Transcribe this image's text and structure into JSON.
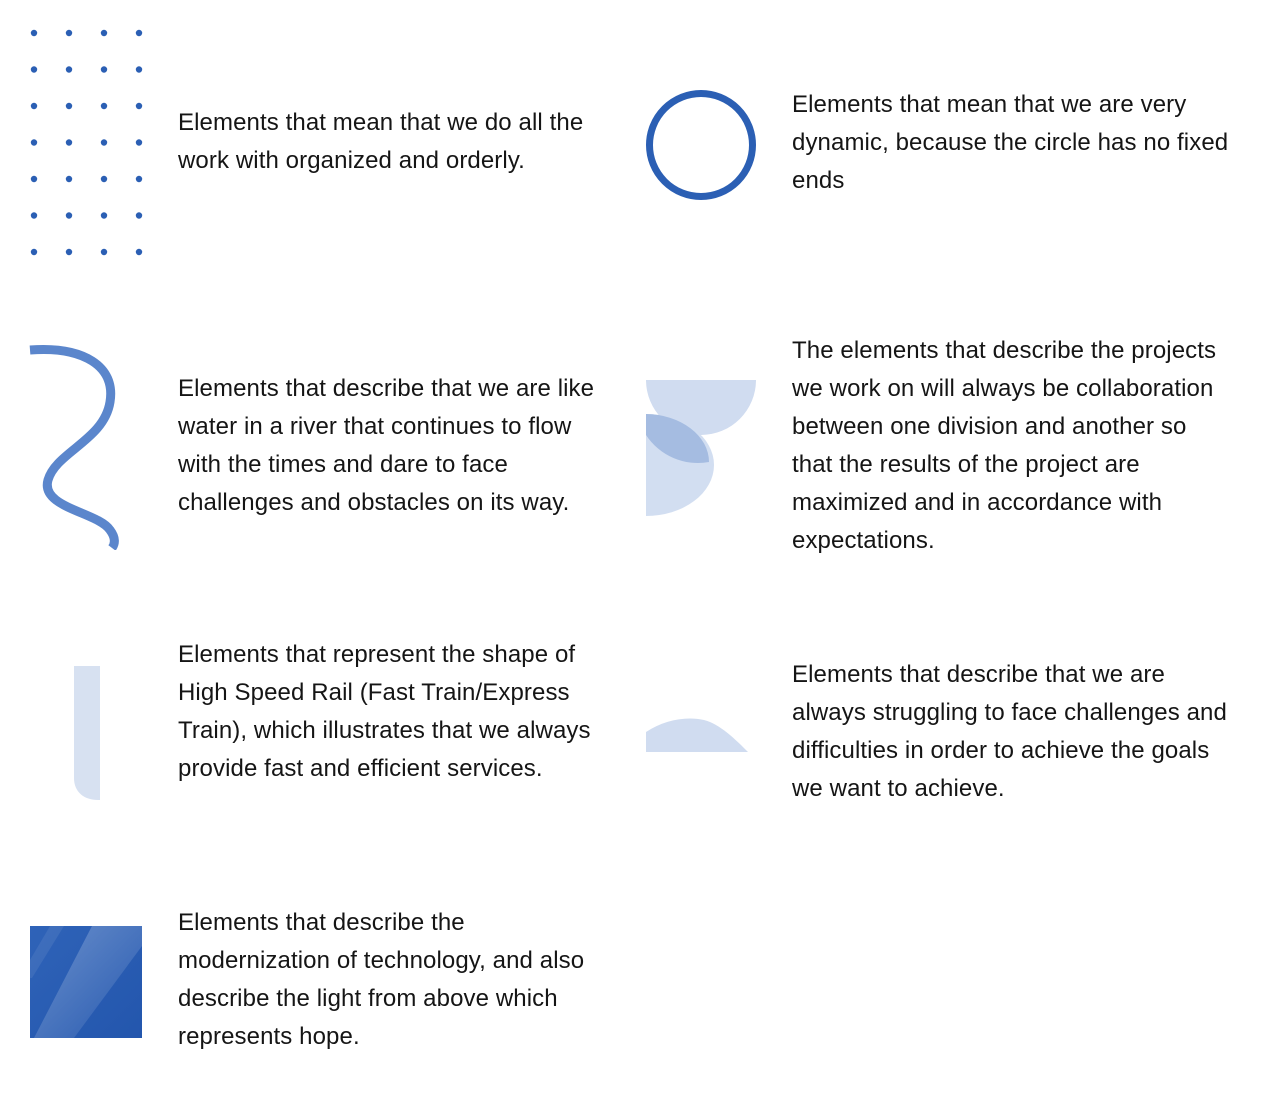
{
  "palette": {
    "primary_blue": "#2b5fb4",
    "light_blue": "#d0dcf0",
    "mid_blue": "#5b86cc"
  },
  "elements": [
    {
      "icon": "dot-grid-icon",
      "text": "Elements that mean that we do all the work with organized and orderly."
    },
    {
      "icon": "circle-ring-icon",
      "text": "Elements that mean that we are very dynamic, because the circle has no fixed ends"
    },
    {
      "icon": "river-wave-icon",
      "text": "Elements that describe that we are like water in a river that continues to flow with the times and dare to face challenges and obstacles on its way."
    },
    {
      "icon": "overlapping-half-circles-icon",
      "text": "The elements that describe the projects we work on will always be collaboration between one division and another so that the results of the project are maximized and in accordance with expectations."
    },
    {
      "icon": "rail-bar-icon",
      "text": "Elements that represent the shape of High Speed Rail (Fast Train/Express Train), which illustrates that we always provide fast and efficient services."
    },
    {
      "icon": "hill-curve-icon",
      "text": "Elements that describe that we are always struggling to face challenges and difficulties in order to achieve the goals we want to achieve."
    },
    {
      "icon": "glossy-square-icon",
      "text": "Elements that describe the modernization of technology, and also describe the light from above which represents hope."
    }
  ]
}
